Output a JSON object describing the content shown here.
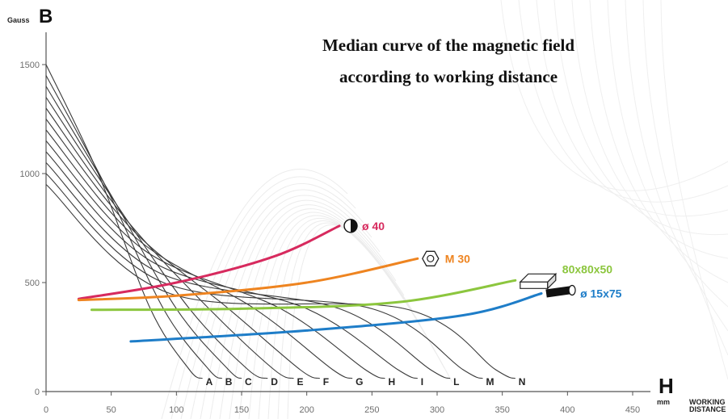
{
  "chart_data": {
    "type": "line",
    "title_lines": [
      "Median curve of the magnetic field",
      "according to working distance"
    ],
    "y_axis": {
      "unit": "Gauss",
      "symbol": "B",
      "ticks": [
        0,
        500,
        1000,
        1500
      ],
      "tick_labels": [
        "0",
        "500",
        "1000",
        "1500"
      ],
      "ylim": [
        0,
        1650
      ]
    },
    "x_axis": {
      "unit": "mm",
      "symbol": "H",
      "label_lines": [
        "WORKING",
        "DISTANCE"
      ],
      "ticks": [
        0,
        50,
        100,
        150,
        200,
        250,
        300,
        350,
        400,
        450
      ],
      "tick_labels": [
        "0",
        "50",
        "100",
        "150",
        "200",
        "250",
        "300",
        "350",
        "400",
        "450"
      ],
      "xlim": [
        0,
        450
      ]
    },
    "grid": false,
    "field_curves": [
      {
        "name": "A",
        "points": [
          [
            0,
            1500
          ],
          [
            40,
            1000
          ],
          [
            80,
            380
          ],
          [
            110,
            100
          ],
          [
            120,
            60
          ]
        ]
      },
      {
        "name": "B",
        "points": [
          [
            0,
            1450
          ],
          [
            45,
            950
          ],
          [
            90,
            380
          ],
          [
            125,
            100
          ],
          [
            135,
            60
          ]
        ]
      },
      {
        "name": "C",
        "points": [
          [
            0,
            1400
          ],
          [
            50,
            900
          ],
          [
            100,
            380
          ],
          [
            140,
            100
          ],
          [
            150,
            60
          ]
        ]
      },
      {
        "name": "D",
        "points": [
          [
            0,
            1350
          ],
          [
            55,
            850
          ],
          [
            110,
            380
          ],
          [
            155,
            100
          ],
          [
            170,
            60
          ]
        ]
      },
      {
        "name": "E",
        "points": [
          [
            0,
            1300
          ],
          [
            60,
            800
          ],
          [
            125,
            380
          ],
          [
            175,
            100
          ],
          [
            190,
            60
          ]
        ]
      },
      {
        "name": "F",
        "points": [
          [
            0,
            1250
          ],
          [
            65,
            750
          ],
          [
            140,
            380
          ],
          [
            195,
            100
          ],
          [
            210,
            60
          ]
        ]
      },
      {
        "name": "G",
        "points": [
          [
            0,
            1200
          ],
          [
            70,
            700
          ],
          [
            160,
            380
          ],
          [
            220,
            100
          ],
          [
            235,
            60
          ]
        ]
      },
      {
        "name": "H",
        "points": [
          [
            0,
            1150
          ],
          [
            75,
            650
          ],
          [
            180,
            380
          ],
          [
            245,
            100
          ],
          [
            260,
            60
          ]
        ]
      },
      {
        "name": "I",
        "points": [
          [
            0,
            1100
          ],
          [
            80,
            600
          ],
          [
            200,
            380
          ],
          [
            270,
            100
          ],
          [
            285,
            60
          ]
        ]
      },
      {
        "name": "L",
        "points": [
          [
            0,
            1050
          ],
          [
            85,
            550
          ],
          [
            225,
            380
          ],
          [
            295,
            100
          ],
          [
            310,
            60
          ]
        ]
      },
      {
        "name": "M",
        "points": [
          [
            0,
            1000
          ],
          [
            90,
            500
          ],
          [
            250,
            380
          ],
          [
            320,
            100
          ],
          [
            335,
            60
          ]
        ]
      },
      {
        "name": "N",
        "points": [
          [
            0,
            950
          ],
          [
            95,
            450
          ],
          [
            275,
            380
          ],
          [
            345,
            100
          ],
          [
            360,
            60
          ]
        ]
      }
    ],
    "series": [
      {
        "name": "ø 40",
        "color": "#d72a5e",
        "icon": "sphere-icon",
        "x": [
          25,
          100,
          175,
          225
        ],
        "y": [
          425,
          500,
          620,
          760
        ]
      },
      {
        "name": "M 30",
        "color": "#ee8420",
        "icon": "nut-icon",
        "x": [
          25,
          100,
          200,
          285
        ],
        "y": [
          420,
          440,
          500,
          610
        ]
      },
      {
        "name": "80x80x50",
        "color": "#8cc63e",
        "icon": "block-icon",
        "x": [
          35,
          150,
          270,
          360
        ],
        "y": [
          375,
          380,
          410,
          510
        ]
      },
      {
        "name": "ø 15x75",
        "color": "#1e7dc8",
        "icon": "cylinder-icon",
        "x": [
          65,
          200,
          320,
          380
        ],
        "y": [
          230,
          280,
          350,
          450
        ]
      }
    ],
    "corner_labels": {
      "y_unit": "Gauss",
      "y_symbol": "B",
      "x_unit": "mm",
      "x_symbol": "H",
      "x_caption_1": "WORKING",
      "x_caption_2": "DISTANCE"
    }
  }
}
